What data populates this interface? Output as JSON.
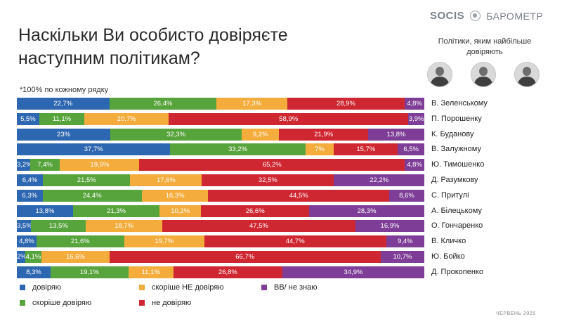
{
  "title": "Наскільки Ви особисто довіряєте наступним політикам?",
  "note": "*100% по кожному рядку",
  "brand": {
    "logo": "SOCIS",
    "name": "БАРОМЕТР"
  },
  "top_caption": "Політики, яким найбільше довіряють",
  "footer": "ЧЕРВЕНЬ 2025",
  "colors": {
    "trust": "#2e67b1",
    "rather_trust": "#57a43c",
    "rather_not_trust": "#f4ac3c",
    "not_trust": "#cf2731",
    "dont_know": "#7e3d97"
  },
  "chart_data": {
    "type": "bar",
    "orientation": "horizontal",
    "stacked": true,
    "title": "Наскільки Ви особисто довіряєте наступним політикам?",
    "categories": [
      "В. Зеленському",
      "П. Порошенку",
      "К. Буданову",
      "В. Залужному",
      "Ю. Тимошенко",
      "Д. Разумкову",
      "С. Притулі",
      "А. Білецькому",
      "О. Гончаренко",
      "В. Кличко",
      "Ю. Бойко",
      "Д. Прокопенко"
    ],
    "series": [
      {
        "name": "довіряю",
        "key": "trust",
        "values": [
          22.7,
          5.5,
          23,
          37.7,
          3.2,
          6.4,
          6.3,
          13.8,
          3.5,
          4.8,
          2,
          8.3
        ],
        "labels": [
          "22,7%",
          "5,5%",
          "23%",
          "37,7%",
          "3,2%",
          "6,4%",
          "6,3%",
          "13,8%",
          "3,5%",
          "4,8%",
          "2%",
          "8,3%"
        ]
      },
      {
        "name": "скоріше довіряю",
        "key": "rather_trust",
        "values": [
          26.4,
          11.1,
          32.3,
          33.2,
          7.4,
          21.5,
          24.4,
          21.3,
          13.5,
          21.6,
          4.1,
          19.1
        ],
        "labels": [
          "26,4%",
          "11,1%",
          "32,3%",
          "33,2%",
          "7,4%",
          "21,5%",
          "24,4%",
          "21,3%",
          "13,5%",
          "21,6%",
          "4,1%",
          "19,1%"
        ]
      },
      {
        "name": "скоріше НЕ довіряю",
        "key": "rather_not_trust",
        "values": [
          17.3,
          20.7,
          9.2,
          7,
          19.5,
          17.6,
          16.3,
          10.2,
          18.7,
          19.7,
          16.6,
          11.1
        ],
        "labels": [
          "17,3%",
          "20,7%",
          "9,2%",
          "7%",
          "19,5%",
          "17,6%",
          "16,3%",
          "10,2%",
          "18,7%",
          "19,7%",
          "16,6%",
          "11,1%"
        ]
      },
      {
        "name": "не довіряю",
        "key": "not_trust",
        "values": [
          28.9,
          58.9,
          21.9,
          15.7,
          65.2,
          32.5,
          44.5,
          26.6,
          47.5,
          44.7,
          66.7,
          26.8
        ],
        "labels": [
          "28,9%",
          "58,9%",
          "21,9%",
          "15,7%",
          "65,2%",
          "32,5%",
          "44,5%",
          "26,6%",
          "47,5%",
          "44,7%",
          "66,7%",
          "26,8%"
        ]
      },
      {
        "name": "ВВ/ не знаю",
        "key": "dont_know",
        "values": [
          4.8,
          3.9,
          13.8,
          6.5,
          4.8,
          22.2,
          8.6,
          28.3,
          16.9,
          9.4,
          10.7,
          34.9
        ],
        "labels": [
          "4,8%",
          "3,9%",
          "13,8%",
          "6,5%",
          "4,8%",
          "22,2%",
          "8,6%",
          "28,3%",
          "16,9%",
          "9,4%",
          "10,7%",
          "34,9%"
        ]
      }
    ],
    "xlim": [
      0,
      100
    ],
    "unit": "%",
    "legend_position": "bottom"
  }
}
